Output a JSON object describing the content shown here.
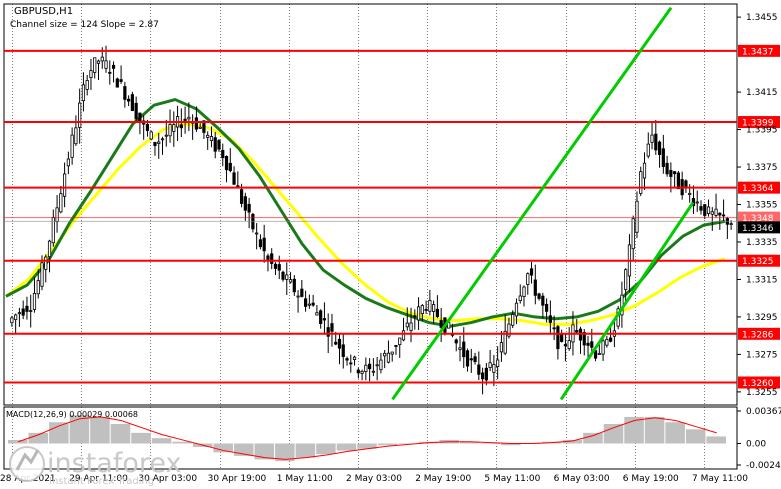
{
  "header": {
    "symbol": "GBPUSD,H1",
    "channel_text": "Channel size = 124 Slope = 2.87"
  },
  "macd": {
    "label": "MACD(12,26,9) 0.00029 0.00068",
    "ticks": [
      "0.00367",
      "0.00",
      "-0.00243"
    ]
  },
  "brand": {
    "name": "instaforex",
    "tagline": "Instant Forex Trading"
  },
  "colors": {
    "level": "#ff0000",
    "ma_fast": "#1a7a1a",
    "ma_slow": "#ffff00",
    "channel": "#00cc00",
    "candle": "#000000",
    "macd_hist": "#c0c0c0",
    "macd_signal": "#ff0000",
    "price_tag": "#ff0000",
    "current_tag": "#000000"
  },
  "chart_data": {
    "type": "candlestick",
    "title": "GBPUSD,H1",
    "y_ticks": [
      "1.3455",
      "1.3415",
      "1.3395",
      "1.3375",
      "1.3355",
      "1.3335",
      "1.3315",
      "1.3295",
      "1.3275",
      "1.3255"
    ],
    "y_tick_values": [
      1.3455,
      1.3415,
      1.3395,
      1.3375,
      1.3355,
      1.3335,
      1.3315,
      1.3295,
      1.3275,
      1.3255
    ],
    "ylim": [
      1.3248,
      1.3462
    ],
    "levels": [
      {
        "label": "1.3437",
        "value": 1.3437
      },
      {
        "label": "1.3399",
        "value": 1.3399
      },
      {
        "label": "1.3364",
        "value": 1.3364
      },
      {
        "label": "1.3325",
        "value": 1.3325
      },
      {
        "label": "1.3286",
        "value": 1.3286
      },
      {
        "label": "1.3260",
        "value": 1.326
      }
    ],
    "current_price": {
      "label": "1.3346",
      "value": 1.3346
    },
    "previous_tag": {
      "label": "1.3348",
      "value": 1.3348
    },
    "x_labels": [
      "28 Apr 2021",
      "29 Apr 11:00",
      "30 Apr 03:00",
      "30 Apr 19:00",
      "1 May 11:00",
      "2 May 03:00",
      "2 May 19:00",
      "5 May 11:00",
      "6 May 03:00",
      "6 May 19:00",
      "7 May 11:00"
    ],
    "closes": [
      1.3298,
      1.3302,
      1.332,
      1.3345,
      1.3372,
      1.3398,
      1.3425,
      1.3432,
      1.3428,
      1.3418,
      1.3408,
      1.3396,
      1.3388,
      1.3392,
      1.3398,
      1.3402,
      1.3396,
      1.3388,
      1.3382,
      1.3368,
      1.3352,
      1.3338,
      1.3325,
      1.3318,
      1.3312,
      1.3305,
      1.33,
      1.3292,
      1.3282,
      1.3274,
      1.3268,
      1.3266,
      1.3272,
      1.3278,
      1.3286,
      1.3296,
      1.3302,
      1.3296,
      1.3288,
      1.3278,
      1.327,
      1.3264,
      1.3268,
      1.3285,
      1.3305,
      1.3318,
      1.3305,
      1.329,
      1.3278,
      1.3288,
      1.3284,
      1.3276,
      1.328,
      1.3296,
      1.333,
      1.3372,
      1.3392,
      1.3376,
      1.3368,
      1.3362,
      1.3356,
      1.335,
      1.3348,
      1.3346
    ],
    "ma_fast": [
      1.3306,
      1.3312,
      1.3325,
      1.3345,
      1.3362,
      1.338,
      1.3398,
      1.3408,
      1.3411,
      1.3406,
      1.3396,
      1.3385,
      1.337,
      1.3352,
      1.3334,
      1.332,
      1.3312,
      1.3305,
      1.33,
      1.3296,
      1.3292,
      1.329,
      1.3292,
      1.3295,
      1.3297,
      1.3295,
      1.3294,
      1.3295,
      1.3298,
      1.3304,
      1.3314,
      1.3328,
      1.3338,
      1.3344,
      1.3346
    ],
    "ma_slow": [
      1.3306,
      1.3315,
      1.333,
      1.3346,
      1.336,
      1.3374,
      1.3386,
      1.3395,
      1.3398,
      1.3396,
      1.339,
      1.3378,
      1.3364,
      1.335,
      1.3336,
      1.3323,
      1.3312,
      1.3303,
      1.3297,
      1.3294,
      1.3293,
      1.3294,
      1.3294,
      1.3293,
      1.3291,
      1.3291,
      1.3293,
      1.3296,
      1.3301,
      1.3308,
      1.3316,
      1.3322,
      1.3326
    ],
    "macd_hist": [
      0.0004,
      0.0012,
      0.0024,
      0.0032,
      0.003,
      0.0022,
      0.0012,
      0.0006,
      0.0002,
      -0.0004,
      -0.001,
      -0.0014,
      -0.0018,
      -0.002,
      -0.0016,
      -0.0012,
      -0.0008,
      -0.0006,
      -0.0002,
      0.0,
      0.0002,
      0.0004,
      0.0002,
      0.0,
      -0.0002,
      0.0,
      0.0002,
      0.0004,
      0.0012,
      0.0022,
      0.003,
      0.003,
      0.0024,
      0.0016,
      0.0008
    ],
    "macd_signal": [
      0.0002,
      0.001,
      0.002,
      0.0028,
      0.003,
      0.0026,
      0.0018,
      0.001,
      0.0004,
      -0.0002,
      -0.0008,
      -0.0012,
      -0.0016,
      -0.0018,
      -0.0016,
      -0.0013,
      -0.0009,
      -0.0006,
      -0.0003,
      -0.0001,
      0.0001,
      0.0002,
      0.0002,
      0.0001,
      0.0,
      0.0,
      0.0001,
      0.0003,
      0.0009,
      0.0018,
      0.0026,
      0.0029,
      0.0026,
      0.0019,
      0.0012
    ],
    "channel_lines": [
      {
        "name": "",
        "points": [
          [
            0.53,
            1.3251
          ],
          [
            0.91,
            1.346
          ]
        ]
      },
      {
        "name": "",
        "points": [
          [
            0.76,
            1.3251
          ],
          [
            0.94,
            1.3356
          ]
        ]
      }
    ],
    "grid": true
  }
}
